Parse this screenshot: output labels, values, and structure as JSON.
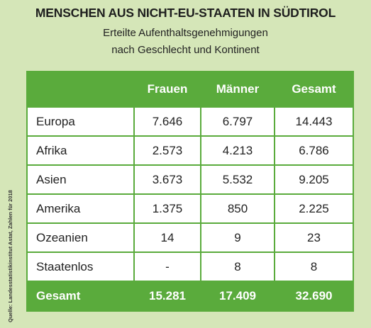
{
  "header": {
    "title": "MENSCHEN AUS NICHT-EU-STAATEN IN SÜDTIROL",
    "subtitle_lines": [
      "Erteilte Aufenthaltsgenehmigungen",
      "nach Geschlecht und Kontinent"
    ]
  },
  "table": {
    "columns": [
      "",
      "Frauen",
      "Männer",
      "Gesamt"
    ],
    "rows": [
      [
        "Europa",
        "7.646",
        "6.797",
        "14.443"
      ],
      [
        "Afrika",
        "2.573",
        "4.213",
        "6.786"
      ],
      [
        "Asien",
        "3.673",
        "5.532",
        "9.205"
      ],
      [
        "Amerika",
        "1.375",
        "850",
        "2.225"
      ],
      [
        "Ozeanien",
        "14",
        "9",
        "23"
      ],
      [
        "Staatenlos",
        "-",
        "8",
        "8"
      ]
    ],
    "total": [
      "Gesamt",
      "15.281",
      "17.409",
      "32.690"
    ]
  },
  "source": "Quelle: Landesstatistikinstitut Astat, Zahlen für 2018"
}
